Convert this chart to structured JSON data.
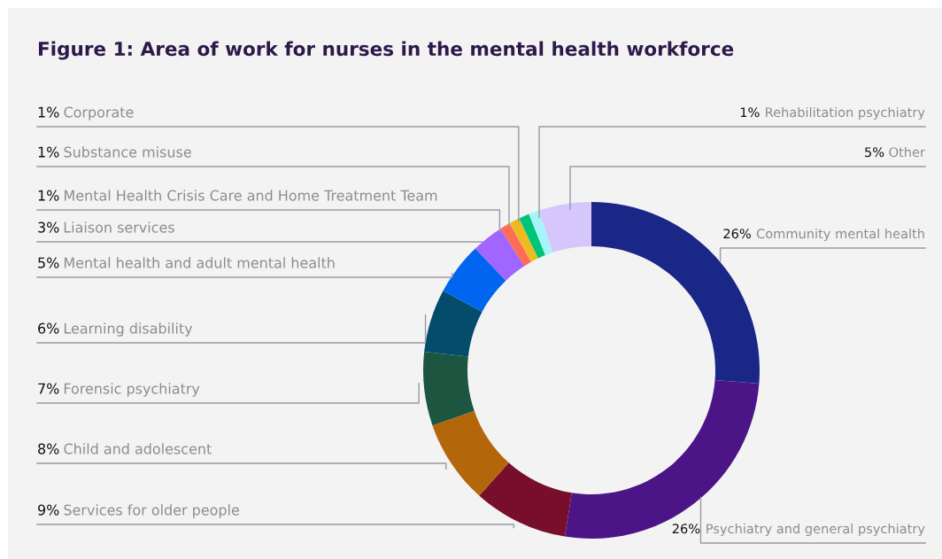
{
  "chart_data": {
    "type": "donut",
    "title": "Figure 1: Area of work for nurses in the mental health workforce",
    "categories": [
      "Community mental health",
      "Psychiatry and general psychiatry",
      "Services for older people",
      "Child and adolescent",
      "Forensic psychiatry",
      "Learning disability",
      "Mental health and adult mental health",
      "Liaison services",
      "Mental Health Crisis Care and Home Treatment Team",
      "Substance misuse",
      "Corporate",
      "Rehabilitation psychiatry",
      "Other"
    ],
    "values": [
      26,
      26,
      9,
      8,
      7,
      6,
      5,
      3,
      1,
      1,
      1,
      1,
      5
    ],
    "colors": [
      "#1a2787",
      "#4b1587",
      "#780f2a",
      "#b3660a",
      "#1c5641",
      "#044c6c",
      "#0066f0",
      "#a066ff",
      "#ff6c55",
      "#ecbb22",
      "#00c479",
      "#a5f5fa",
      "#d5c6fb"
    ],
    "value_labels": [
      "26%",
      "26%",
      "9%",
      "8%",
      "7%",
      "6%",
      "5%",
      "3%",
      "1%",
      "1%",
      "1%",
      "1%",
      "5%"
    ]
  }
}
